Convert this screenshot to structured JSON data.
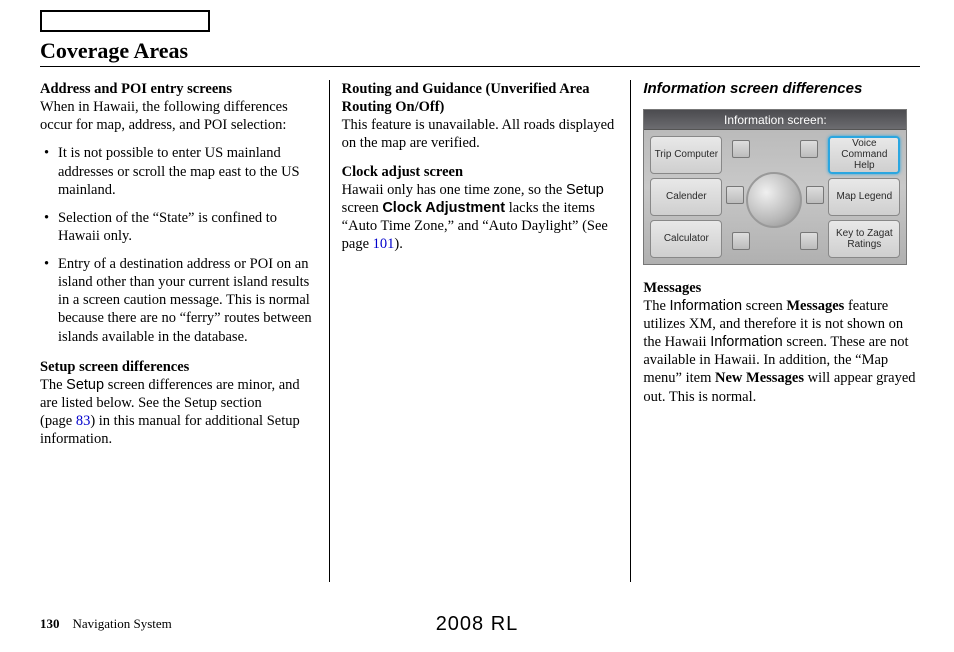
{
  "header": {
    "title": "Coverage Areas"
  },
  "col1": {
    "h1": "Address and POI entry screens",
    "p1": "When in Hawaii, the following differences occur for map, address, and POI selection:",
    "bullets": [
      "It is not possible to enter US mainland addresses or scroll the map east to the US mainland.",
      "Selection of the “State” is confined to Hawaii only.",
      "Entry of a destination address or POI on an island other than your current island results in a screen caution message. This is normal because there are no “ferry” routes between islands available in the database."
    ],
    "h2": "Setup screen differences",
    "p2a": "The ",
    "p2b_sans": "Setup",
    "p2c": " screen differences are minor, and are listed below. See the Setup section (page ",
    "p2_link": "83",
    "p2d": ") in this manual for additional Setup information."
  },
  "col2": {
    "h1": "Routing and Guidance (Unverified Area Routing On/Off)",
    "p1": "This feature is unavailable. All roads displayed on the map are verified.",
    "h2": "Clock adjust screen",
    "p2a": "Hawaii only has one time zone, so the ",
    "p2b_sans": "Setup",
    "p2c": " screen ",
    "p2d_bold": "Clock Adjustment",
    "p2e": " lacks the items “Auto Time Zone,” and “Auto Daylight” (See page ",
    "p2_link": "101",
    "p2f": ")."
  },
  "col3": {
    "h1": "Information screen differences",
    "screen": {
      "title": "Information screen:",
      "buttons": {
        "tl": "Trip Computer",
        "ml": "Calender",
        "bl": "Calculator",
        "tr": "Voice Command Help",
        "mr": "Map Legend",
        "br": "Key to Zagat Ratings"
      }
    },
    "h2": "Messages",
    "p2a": "The ",
    "p2b_sans": "Information",
    "p2c": " screen ",
    "p2d_bold": "Messages",
    "p2e": " feature utilizes XM, and therefore it is not shown on the Hawaii ",
    "p2f_sans": "Information",
    "p2g": " screen. These are not available in Hawaii. In addition, the “Map menu” item ",
    "p2h_bold": "New Messages",
    "p2i": " will appear grayed out. This is normal."
  },
  "footer": {
    "page_num": "130",
    "page_label": "Navigation System",
    "center": "2008  RL"
  }
}
